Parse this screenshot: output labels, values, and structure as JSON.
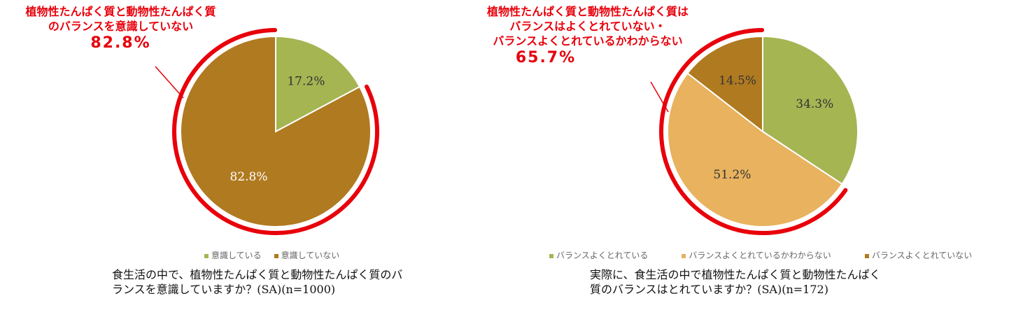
{
  "colors": {
    "green": "#a5b552",
    "brown": "#b07a20",
    "light_orange": "#e8b25e",
    "highlight": "#e8000b"
  },
  "chart_data": [
    {
      "type": "pie",
      "categories": [
        "意識している",
        "意識していない"
      ],
      "values": [
        17.2,
        82.8
      ],
      "data_labels": [
        "17.2%",
        "82.8%"
      ],
      "colors": [
        "#a5b552",
        "#b07a20"
      ],
      "legend_position": "bottom",
      "callout": {
        "line1": "植物性たんぱく質と動物性たんぱく質",
        "line2": "のバランスを意識していない",
        "value": "82.8%"
      },
      "caption": {
        "line1": "食生活の中で、植物性たんぱく質と動物性たんぱく質のバ",
        "line2": "ランスを意識していますか？(SA)(n=1000)"
      }
    },
    {
      "type": "pie",
      "categories": [
        "バランスよくとれている",
        "バランスよくとれているかわからない",
        "バランスよくとれていない"
      ],
      "values": [
        34.3,
        51.2,
        14.5
      ],
      "data_labels": [
        "34.3%",
        "51.2%",
        "14.5%"
      ],
      "colors": [
        "#a5b552",
        "#e8b25e",
        "#b07a20"
      ],
      "legend_position": "bottom",
      "callout": {
        "line1": "植物性たんぱく質と動物性たんぱく質は",
        "line2": "バランスはよくとれていない・",
        "line3": "バランスよくとれているかわからない",
        "value": "65.7%"
      },
      "caption": {
        "line1": "実際に、食生活の中で植物性たんぱく質と動物性たんぱく",
        "line2": "質のバランスはとれていますか？(SA)(n=172)"
      }
    }
  ]
}
